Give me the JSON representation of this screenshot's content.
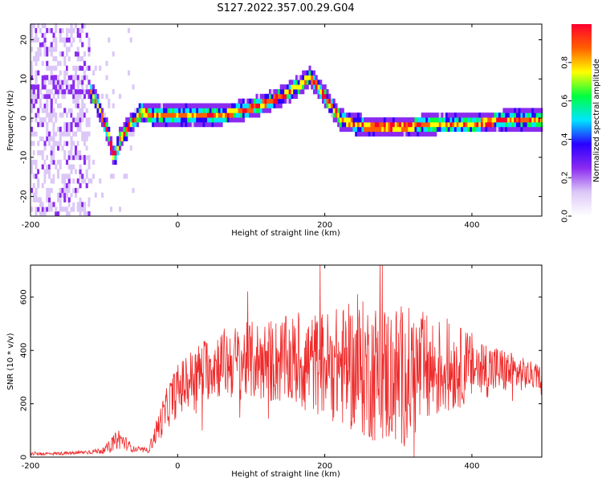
{
  "title": "S127.2022.357.00.29.G04",
  "chart_data": [
    {
      "type": "heatmap",
      "xlabel": "Height of straight line (km)",
      "ylabel": "Frequency (Hz)",
      "xlim": [
        -200,
        495
      ],
      "ylim": [
        -25,
        24
      ],
      "x_ticks": [
        "-200",
        "0",
        "200",
        "400"
      ],
      "y_ticks": [
        "-20",
        "-10",
        "0",
        "10",
        "20"
      ],
      "colorbar": {
        "label": "Normalized spectral amplitude",
        "range": [
          0.0,
          1.0
        ],
        "ticks": [
          "0.0",
          "0.2",
          "0.4",
          "0.6",
          "0.8"
        ],
        "colors": [
          "#ffffff",
          "#dcc8f7",
          "#8b2bf0",
          "#2a00ff",
          "#00e5ff",
          "#00ff40",
          "#ffff00",
          "#ff6000",
          "#ff0030"
        ]
      },
      "ridge": {
        "x": [
          -130,
          -115,
          -105,
          -95,
          -88,
          -80,
          -65,
          -50,
          -30,
          0,
          50,
          100,
          140,
          165,
          178,
          195,
          220,
          260,
          300,
          350,
          400,
          450,
          495
        ],
        "y": [
          8,
          5,
          0,
          -5,
          -11,
          -6,
          -2,
          1,
          0,
          0,
          0,
          2,
          5,
          8,
          10,
          6,
          -1,
          -3,
          -3,
          -2,
          -2,
          -1,
          -1
        ]
      }
    },
    {
      "type": "line",
      "xlabel": "Height of straight line (km)",
      "ylabel": "SNR (10 * v/v)",
      "xlim": [
        -200,
        495
      ],
      "ylim": [
        0,
        720
      ],
      "x_ticks": [
        "-200",
        "0",
        "200",
        "400"
      ],
      "y_ticks": [
        "0",
        "200",
        "400",
        "600"
      ],
      "series_color": "#ee2a2a",
      "envelope": {
        "x": [
          -200,
          -140,
          -100,
          -80,
          -60,
          -40,
          -25,
          -10,
          0,
          20,
          50,
          100,
          150,
          200,
          250,
          300,
          350,
          400,
          450,
          495
        ],
        "mean": [
          12,
          15,
          25,
          70,
          30,
          25,
          120,
          210,
          250,
          300,
          350,
          360,
          360,
          350,
          330,
          300,
          330,
          340,
          320,
          300
        ],
        "amp": [
          6,
          6,
          12,
          40,
          12,
          10,
          60,
          90,
          100,
          110,
          130,
          150,
          170,
          200,
          260,
          280,
          200,
          130,
          80,
          40
        ]
      }
    }
  ]
}
